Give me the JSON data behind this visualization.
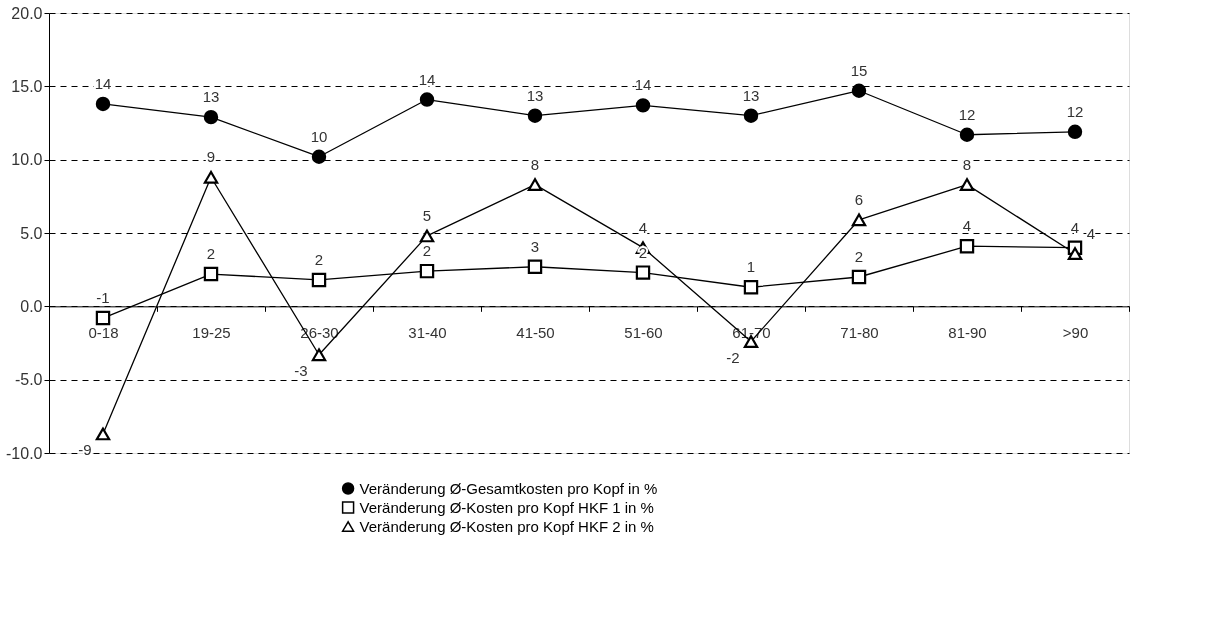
{
  "chart_data": {
    "type": "line",
    "categories": [
      "0-18",
      "19-25",
      "26-30",
      "31-40",
      "41-50",
      "51-60",
      "61-70",
      "71-80",
      "81-90",
      ">90"
    ],
    "series": [
      {
        "name": "Veränderung Ø-Gesamtkosten pro Kopf in %",
        "color": "#000000",
        "marker": "circle",
        "values": [
          13.8,
          12.9,
          10.2,
          14.1,
          13.0,
          13.7,
          13.0,
          14.7,
          11.7,
          11.9
        ],
        "value_labels": [
          "14",
          "13",
          "10",
          "14",
          "13",
          "14",
          "13",
          "15",
          "12",
          "12"
        ]
      },
      {
        "name": "Veränderung Ø-Kosten pro Kopf HKF 1 in %",
        "color": "#000000",
        "marker": "square",
        "values": [
          -0.8,
          2.2,
          1.8,
          2.4,
          2.7,
          2.3,
          1.3,
          2.0,
          4.1,
          4.0
        ],
        "value_labels": [
          "-1",
          "2",
          "2",
          "2",
          "3",
          "2",
          "1",
          "2",
          "4",
          "4"
        ]
      },
      {
        "name": "Veränderung Ø-Kosten pro Kopf HKF 2 in %",
        "color": "#000000",
        "marker": "triangle",
        "values": [
          -8.7,
          8.8,
          -3.3,
          4.8,
          8.3,
          4.0,
          -2.4,
          5.9,
          8.3,
          3.6
        ],
        "value_labels": [
          "-9",
          "9",
          "-3",
          "5",
          "8",
          "4",
          "-2",
          "6",
          "8",
          "4"
        ]
      }
    ],
    "ylim": [
      -10,
      20
    ],
    "yticks": [
      {
        "value": -10,
        "label": "-10.0"
      },
      {
        "value": -5,
        "label": "-5.0"
      },
      {
        "value": 0,
        "label": "0.0"
      },
      {
        "value": 5,
        "label": "5.0"
      },
      {
        "value": 10,
        "label": "10.0"
      },
      {
        "value": 15,
        "label": "15.0"
      },
      {
        "value": 20,
        "label": "20.0"
      }
    ],
    "grid": "y",
    "line_style": "solid",
    "legend": "bottom"
  }
}
